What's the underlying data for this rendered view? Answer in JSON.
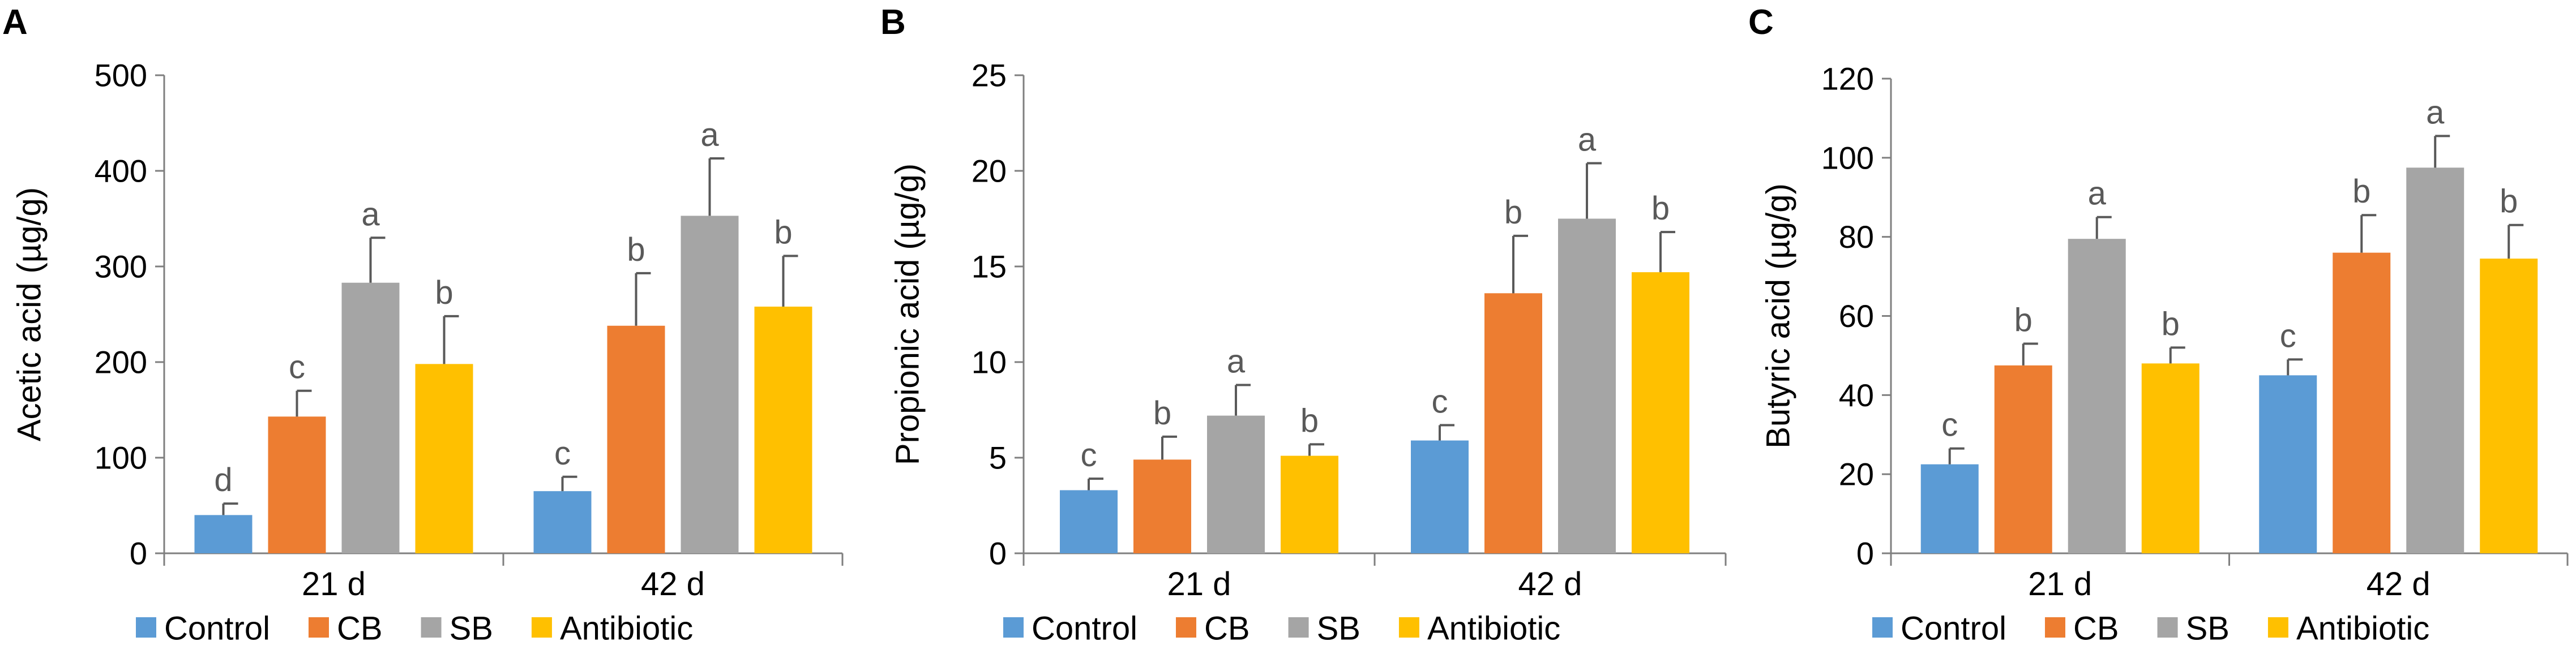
{
  "colors": {
    "Control": "#5b9bd5",
    "CB": "#ed7d31",
    "SB": "#a5a5a5",
    "Antibiotic": "#ffc000",
    "axis": "#7f7f7f",
    "error_bar": "#595959",
    "text": "#000000",
    "sig_letter": "#595959"
  },
  "chart_data": [
    {
      "panel_label": "A",
      "type": "bar",
      "title": "",
      "xlabel": "",
      "ylabel": "Acetic acid (µg/g)",
      "ylim": [
        0,
        500
      ],
      "yticks": [
        0,
        100,
        200,
        300,
        400,
        500
      ],
      "ytick_labels": [
        "0",
        "100",
        "200",
        "300",
        "400",
        "500"
      ],
      "grid": false,
      "legend": "bottom",
      "categories": [
        "21 d",
        "42 d"
      ],
      "series": [
        {
          "name": "Control",
          "values": [
            40,
            65
          ],
          "errors": [
            12,
            15
          ],
          "letters": [
            "d",
            "c"
          ]
        },
        {
          "name": "CB",
          "values": [
            143,
            238
          ],
          "errors": [
            27,
            55
          ],
          "letters": [
            "c",
            "b"
          ]
        },
        {
          "name": "SB",
          "values": [
            283,
            353
          ],
          "errors": [
            47,
            60
          ],
          "letters": [
            "a",
            "a"
          ]
        },
        {
          "name": "Antibiotic",
          "values": [
            198,
            258
          ],
          "errors": [
            50,
            53
          ],
          "letters": [
            "b",
            "b"
          ]
        }
      ]
    },
    {
      "panel_label": "B",
      "type": "bar",
      "title": "",
      "xlabel": "",
      "ylabel": "Propionic acid (µg/g)",
      "ylim": [
        0,
        25
      ],
      "yticks": [
        0,
        5,
        10,
        15,
        20,
        25
      ],
      "ytick_labels": [
        "0",
        "5",
        "10",
        "15",
        "20",
        "25"
      ],
      "grid": false,
      "legend": "bottom",
      "categories": [
        "21 d",
        "42 d"
      ],
      "series": [
        {
          "name": "Control",
          "values": [
            3.3,
            5.9
          ],
          "errors": [
            0.6,
            0.8
          ],
          "letters": [
            "c",
            "c"
          ]
        },
        {
          "name": "CB",
          "values": [
            4.9,
            13.6
          ],
          "errors": [
            1.2,
            3.0
          ],
          "letters": [
            "b",
            "b"
          ]
        },
        {
          "name": "SB",
          "values": [
            7.2,
            17.5
          ],
          "errors": [
            1.6,
            2.9
          ],
          "letters": [
            "a",
            "a"
          ]
        },
        {
          "name": "Antibiotic",
          "values": [
            5.1,
            14.7
          ],
          "errors": [
            0.6,
            2.1
          ],
          "letters": [
            "b",
            "b"
          ]
        }
      ]
    },
    {
      "panel_label": "C",
      "type": "bar",
      "title": "",
      "xlabel": "",
      "ylabel": "Butyric acid (µg/g)",
      "ylim": [
        0,
        120
      ],
      "yticks": [
        0,
        20,
        40,
        60,
        80,
        100,
        120
      ],
      "ytick_labels": [
        "0",
        "20",
        "40",
        "60",
        "80",
        "100",
        "120"
      ],
      "grid": false,
      "legend": "bottom",
      "categories": [
        "21 d",
        "42 d"
      ],
      "series": [
        {
          "name": "Control",
          "values": [
            22.5,
            45
          ],
          "errors": [
            4,
            4
          ],
          "letters": [
            "c",
            "c"
          ]
        },
        {
          "name": "CB",
          "values": [
            47.5,
            76
          ],
          "errors": [
            5.5,
            9.5
          ],
          "letters": [
            "b",
            "b"
          ]
        },
        {
          "name": "SB",
          "values": [
            79.5,
            97.5
          ],
          "errors": [
            5.5,
            8
          ],
          "letters": [
            "a",
            "a"
          ]
        },
        {
          "name": "Antibiotic",
          "values": [
            48,
            74.5
          ],
          "errors": [
            4,
            8.5
          ],
          "letters": [
            "b",
            "b"
          ]
        }
      ]
    }
  ]
}
